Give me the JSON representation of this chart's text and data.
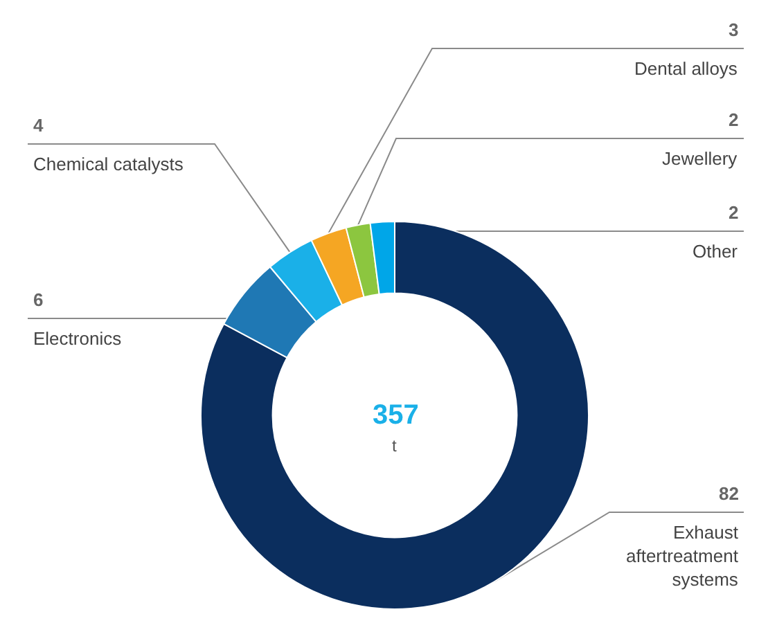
{
  "chart_data": {
    "type": "donut",
    "categories": [
      "Exhaust aftertreatment systems",
      "Electronics",
      "Chemical catalysts",
      "Dental alloys",
      "Jewellery",
      "Other"
    ],
    "values": [
      82,
      6,
      4,
      3,
      2,
      2
    ],
    "colors": [
      "#0b2e5e",
      "#1f78b4",
      "#1ab0e8",
      "#f5a623",
      "#8cc63f",
      "#00a6e8"
    ],
    "data_labels": true,
    "legend": false,
    "annotations": [
      "357",
      "t"
    ]
  }
}
